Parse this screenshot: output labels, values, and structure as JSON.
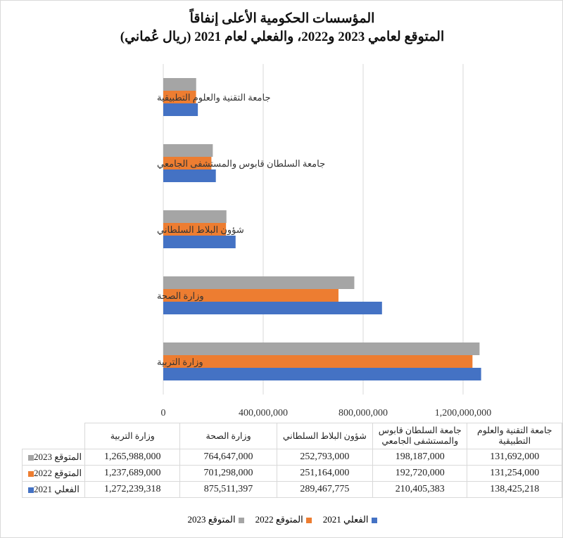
{
  "chart_data": {
    "type": "bar",
    "orientation": "horizontal",
    "title": "المؤسسات الحكومية الأعلى إنفاقاً",
    "subtitle": "المتوقع لعامي 2023 و2022، والفعلي لعام 2021 (ريال عُماني)",
    "categories": [
      "جامعة التقنية والعلوم التطبيقية",
      "جامعة السلطان قابوس والمستشفى الجامعي",
      "شؤون البلاط السلطاني",
      "وزارة الصحة",
      "وزارة التربية"
    ],
    "series": [
      {
        "name": "المتوقع 2023",
        "color": "#a5a5a5",
        "values": [
          131692000,
          198187000,
          252793000,
          764647000,
          1265988000
        ],
        "labels": [
          "131,692,000",
          "198,187,000",
          "252,793,000",
          "764,647,000",
          "1,265,988,000"
        ]
      },
      {
        "name": "المتوقع 2022",
        "color": "#ed7d31",
        "values": [
          131254000,
          192720000,
          251164000,
          701298000,
          1237689000
        ],
        "labels": [
          "131,254,000",
          "192,720,000",
          "251,164,000",
          "701,298,000",
          "1,237,689,000"
        ]
      },
      {
        "name": "الفعلي 2021",
        "color": "#4472c4",
        "values": [
          138425218,
          210405383,
          289467775,
          875511397,
          1272239318
        ],
        "labels": [
          "138,425,218",
          "210,405,383",
          "289,467,775",
          "875,511,397",
          "1,272,239,318"
        ]
      }
    ],
    "xticks": [
      0,
      400000000,
      800000000,
      1200000000
    ],
    "xtick_labels": [
      "0",
      "400,000,000",
      "800,000,000",
      "1,200,000,000"
    ],
    "xlim": [
      0,
      1300000000
    ],
    "grid": true,
    "legend": "bottom",
    "data_table": true
  }
}
